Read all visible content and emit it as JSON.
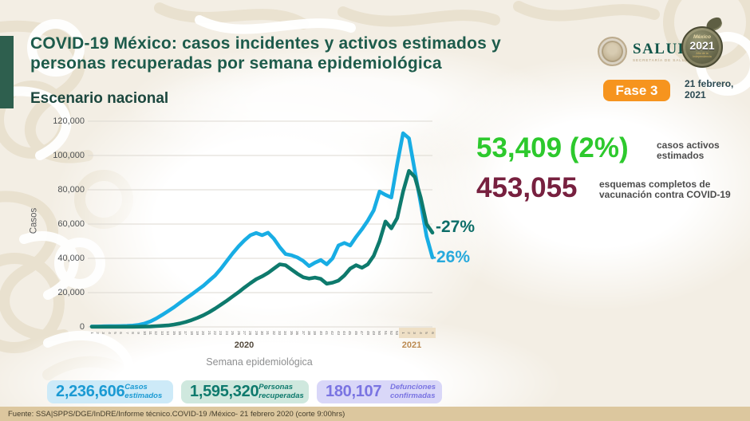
{
  "header": {
    "title_line1": "COVID-19 México: casos incidentes y activos estimados y",
    "title_line2": "personas recuperadas por semana epidemiológica",
    "subtitle": "Escenario nacional",
    "phase_badge": "Fase 3",
    "date": "21 febrero, 2021",
    "salud_logo": {
      "name": "SALUD",
      "sub": "SECRETARÍA DE SALUD"
    },
    "mexico_logo": {
      "top": "México",
      "year": "2021",
      "sub": "Año de la Independencia"
    }
  },
  "colors": {
    "title_green": "#1d5b4b",
    "accent_bar": "#2e5f4e",
    "estimated_blue": "#18ade4",
    "recovered_teal": "#0e7a6d",
    "active_green": "#2dc92d",
    "vaccine_maroon": "#77203f",
    "phase_badge_orange": "#f6941e",
    "deaths_purple": "#7a74e2",
    "footer_tan": "#dcc79e"
  },
  "chart_data": {
    "type": "line",
    "title": "",
    "ylabel": "Casos",
    "xlabel": "Semana epidemiológica",
    "ylim": [
      0,
      120000
    ],
    "grid": true,
    "legend_position": "none",
    "yticks": [
      0,
      20000,
      40000,
      60000,
      80000,
      100000,
      120000
    ],
    "ytick_labels": [
      "0",
      "20,000",
      "40,000",
      "60,000",
      "80,000",
      "100,000",
      "120,000"
    ],
    "x_groups": [
      {
        "year": "2020",
        "weeks": 53
      },
      {
        "year": "2021",
        "weeks": 6
      }
    ],
    "series": [
      {
        "name": "Casos estimados",
        "color": "#18ade4",
        "end_label": "-26%",
        "values": [
          300,
          300,
          350,
          400,
          450,
          500,
          600,
          800,
          1200,
          2000,
          3200,
          5000,
          7000,
          9200,
          11500,
          14000,
          16500,
          19000,
          21500,
          24000,
          27000,
          30000,
          34000,
          38500,
          43000,
          47000,
          50500,
          53500,
          54800,
          53500,
          55000,
          51500,
          46500,
          42500,
          41800,
          40500,
          38500,
          35500,
          37500,
          39000,
          36500,
          40000,
          47500,
          49000,
          47500,
          52500,
          57000,
          62000,
          68000,
          79000,
          77000,
          75500,
          95000,
          113000,
          110000,
          91000,
          72000,
          53000,
          40500
        ]
      },
      {
        "name": "Personas recuperadas",
        "color": "#0e7a6d",
        "end_label": "-27%",
        "values": [
          100,
          100,
          100,
          100,
          100,
          100,
          100,
          100,
          150,
          200,
          300,
          450,
          650,
          900,
          1400,
          2000,
          2900,
          4000,
          5300,
          6800,
          8600,
          10700,
          13000,
          15300,
          17800,
          20300,
          23000,
          25500,
          27800,
          29500,
          31500,
          34000,
          36500,
          36000,
          33500,
          31000,
          29000,
          28200,
          28800,
          28000,
          25200,
          25800,
          27000,
          30000,
          34000,
          36000,
          34500,
          36500,
          41500,
          50000,
          61500,
          57500,
          63500,
          79000,
          91000,
          87500,
          75500,
          60000,
          55000
        ]
      }
    ]
  },
  "right_stats": [
    {
      "value": "53,409 (2%)",
      "label": "casos activos estimados",
      "color": "#2dc92d"
    },
    {
      "value": "453,055",
      "label": "esquemas completos de vacunación contra COVID-19",
      "color": "#77203f"
    }
  ],
  "bottom_stats": [
    {
      "value": "2,236,606",
      "label": "Casos estimados",
      "color": "#1b9ad3"
    },
    {
      "value": "1,595,320",
      "label": "Personas recuperadas",
      "color": "#0e7a6d"
    },
    {
      "value": "180,107",
      "label": "Defunciones confirmadas",
      "color": "#7a74e2"
    }
  ],
  "footer": {
    "source": "Fuente: SSA|SPPS/DGE/InDRE/Informe técnico.COVID-19 /México- 21 febrero 2020 (corte 9:00hrs)"
  }
}
